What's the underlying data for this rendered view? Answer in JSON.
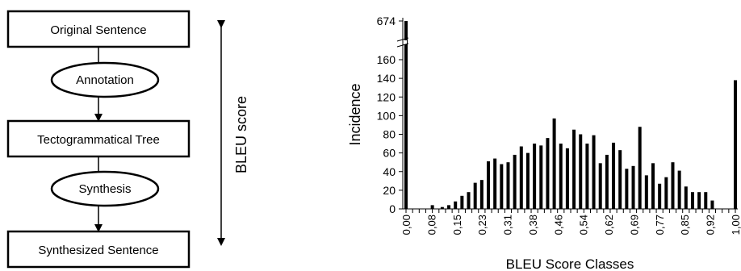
{
  "diagram": {
    "nodes": {
      "original": "Original Sentence",
      "annotation": "Annotation",
      "tree": "Tectogrammatical Tree",
      "synthesis": "Synthesis",
      "synthesized": "Synthesized Sentence"
    },
    "side_label": "BLEU score"
  },
  "chart_data": {
    "type": "bar",
    "xlabel": "BLEU Score Classes",
    "ylabel": "Incidence",
    "y_ticks": [
      0,
      20,
      40,
      60,
      80,
      100,
      120,
      140,
      160,
      674
    ],
    "y_axis_break": true,
    "grid": false,
    "x_tick_labels": [
      "0,00",
      "0,08",
      "0,15",
      "0,23",
      "0,31",
      "0,38",
      "0,46",
      "0,54",
      "0,62",
      "0,69",
      "0,77",
      "0,85",
      "0,92",
      "1,00"
    ],
    "categories": [
      "0,00",
      "0,01",
      "0,02",
      "0,03",
      "0,04",
      "0,05",
      "0,06",
      "0,07",
      "0,08",
      "0,09",
      "0,10",
      "0,11",
      "0,12",
      "0,13",
      "0,14",
      "0,15",
      "0,16",
      "0,17",
      "0,18",
      "0,19",
      "0,20",
      "0,21",
      "0,22",
      "0,23",
      "0,24",
      "0,25",
      "0,26",
      "0,27",
      "0,28",
      "0,29",
      "0,30",
      "0,31",
      "0,32",
      "0,33",
      "0,34",
      "0,35",
      "0,36",
      "0,37",
      "0,38",
      "0,39",
      "0,40",
      "0,41",
      "0,42",
      "0,43",
      "0,44",
      "0,45",
      "0,46",
      "0,47",
      "0,48",
      "0,49",
      "0,50",
      "0,51",
      "0,52",
      "0,53",
      "0,54",
      "0,55",
      "0,56",
      "0,57",
      "0,58",
      "0,59",
      "0,60",
      "0,61",
      "0,62",
      "0,63",
      "0,64",
      "0,65",
      "0,66",
      "0,67",
      "0,68",
      "0,69",
      "0,70",
      "0,71",
      "0,72",
      "0,73",
      "0,74",
      "0,75",
      "0,76",
      "0,77",
      "0,78",
      "0,79",
      "0,80",
      "0,81",
      "0,82",
      "0,83",
      "0,84",
      "0,85",
      "0,86",
      "0,87",
      "0,88",
      "0,89",
      "0,90",
      "0,91",
      "0,92",
      "0,93",
      "0,94",
      "0,95",
      "0,96",
      "0,97",
      "0,98",
      "0,99",
      "1,00"
    ],
    "values": [
      674,
      0,
      0,
      0,
      0,
      0,
      0,
      0,
      4,
      0,
      0,
      2,
      0,
      4,
      0,
      8,
      0,
      14,
      0,
      18,
      0,
      28,
      0,
      31,
      0,
      51,
      0,
      54,
      0,
      48,
      0,
      50,
      0,
      58,
      0,
      67,
      0,
      60,
      0,
      70,
      0,
      68,
      0,
      76,
      0,
      97,
      0,
      70,
      0,
      65,
      0,
      85,
      0,
      80,
      0,
      70,
      0,
      79,
      0,
      49,
      0,
      58,
      0,
      71,
      0,
      63,
      0,
      43,
      0,
      46,
      0,
      88,
      0,
      36,
      0,
      49,
      0,
      27,
      0,
      34,
      0,
      50,
      0,
      41,
      0,
      24,
      0,
      18,
      0,
      18,
      0,
      18,
      0,
      9,
      0,
      0,
      0,
      0,
      0,
      0,
      138
    ]
  }
}
